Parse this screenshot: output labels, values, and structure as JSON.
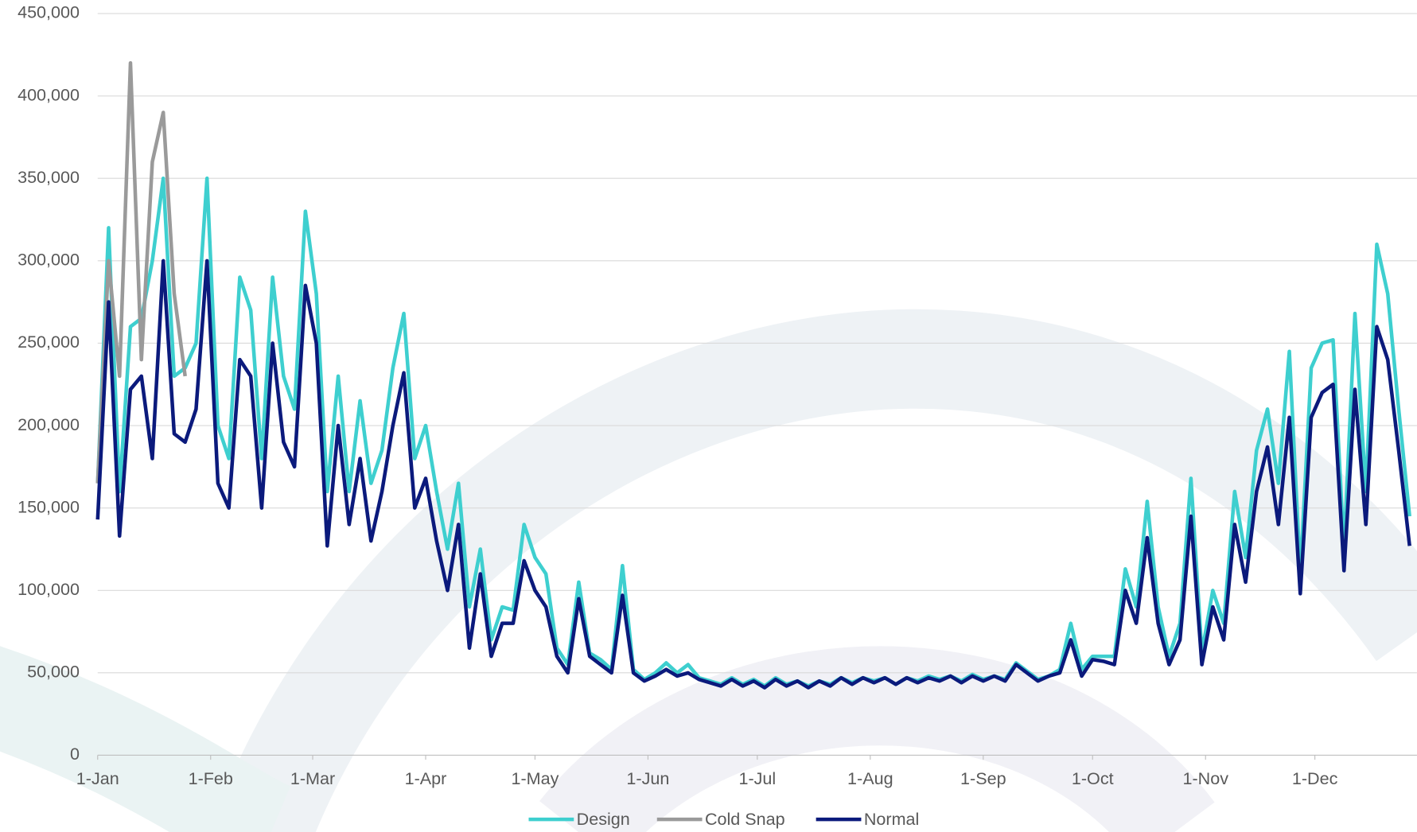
{
  "chart_data": {
    "type": "line",
    "x": [
      0,
      3,
      6,
      9,
      12,
      15,
      18,
      21,
      24,
      27,
      30,
      33,
      36,
      39,
      42,
      45,
      48,
      51,
      54,
      57,
      60,
      63,
      66,
      69,
      72,
      75,
      78,
      81,
      84,
      87,
      90,
      93,
      96,
      99,
      102,
      105,
      108,
      111,
      114,
      117,
      120,
      123,
      126,
      129,
      132,
      135,
      138,
      141,
      144,
      147,
      150,
      153,
      156,
      159,
      162,
      165,
      168,
      171,
      174,
      177,
      180,
      183,
      186,
      189,
      192,
      195,
      198,
      201,
      204,
      207,
      210,
      213,
      216,
      219,
      222,
      225,
      228,
      231,
      234,
      237,
      240,
      243,
      246,
      249,
      252,
      255,
      258,
      261,
      264,
      267,
      270,
      273,
      276,
      279,
      282,
      285,
      288,
      291,
      294,
      297,
      300,
      303,
      306,
      309,
      312,
      315,
      318,
      321,
      324,
      327,
      330,
      333,
      336,
      339,
      342,
      345,
      348,
      351,
      354,
      357,
      360
    ],
    "series": [
      {
        "name": "Design",
        "color": "#3ecfcf",
        "values": [
          165000,
          320000,
          160000,
          260000,
          265000,
          300000,
          350000,
          230000,
          235000,
          250000,
          350000,
          200000,
          180000,
          290000,
          270000,
          180000,
          290000,
          230000,
          210000,
          330000,
          280000,
          160000,
          230000,
          160000,
          215000,
          165000,
          185000,
          235000,
          268000,
          180000,
          200000,
          160000,
          125000,
          165000,
          90000,
          125000,
          70000,
          90000,
          88000,
          140000,
          120000,
          110000,
          65000,
          55000,
          105000,
          62000,
          58000,
          52000,
          115000,
          52000,
          46000,
          50000,
          56000,
          50000,
          55000,
          47000,
          45000,
          43000,
          47000,
          43000,
          46000,
          42000,
          47000,
          43000,
          45000,
          42000,
          45000,
          43000,
          47000,
          44000,
          47000,
          45000,
          47000,
          43000,
          47000,
          45000,
          48000,
          46000,
          48000,
          45000,
          49000,
          46000,
          48000,
          46000,
          56000,
          51000,
          46000,
          48000,
          52000,
          80000,
          52000,
          60000,
          60000,
          60000,
          113000,
          90000,
          154000,
          90000,
          60000,
          80000,
          168000,
          62000,
          100000,
          80000,
          160000,
          120000,
          185000,
          210000,
          165000,
          245000,
          110000,
          235000,
          250000,
          252000,
          125000,
          268000,
          160000,
          310000,
          280000,
          210000,
          145000
        ]
      },
      {
        "name": "Cold Snap",
        "color": "#9a9a9a",
        "values": [
          165000,
          300000,
          230000,
          420000,
          240000,
          360000,
          390000,
          280000,
          230000,
          null,
          null,
          null,
          null,
          null,
          null,
          null,
          null,
          null,
          null,
          null,
          null,
          null,
          null,
          null,
          null,
          null,
          null,
          null,
          null,
          null,
          null,
          null,
          null,
          null,
          null,
          null,
          null,
          null,
          null,
          null,
          null,
          null,
          null,
          null,
          null,
          null,
          null,
          null,
          null,
          null,
          null,
          null,
          null,
          null,
          null,
          null,
          null,
          null,
          null,
          null,
          null,
          null,
          null,
          null,
          null,
          null,
          null,
          null,
          null,
          null,
          null,
          null,
          null,
          null,
          null,
          null,
          null,
          null,
          null,
          null,
          null,
          null,
          null,
          null,
          null,
          null,
          null,
          null,
          null,
          null,
          null,
          null,
          null,
          null,
          null,
          null,
          null,
          null,
          null,
          null,
          null,
          null,
          null,
          null,
          null,
          null,
          null,
          null,
          null,
          null,
          null,
          null,
          null,
          null,
          null,
          null,
          null,
          null,
          null,
          null,
          null
        ]
      },
      {
        "name": "Normal",
        "color": "#0b1a7c",
        "values": [
          143000,
          275000,
          133000,
          222000,
          230000,
          180000,
          300000,
          195000,
          190000,
          210000,
          300000,
          165000,
          150000,
          240000,
          230000,
          150000,
          250000,
          190000,
          175000,
          285000,
          250000,
          127000,
          200000,
          140000,
          180000,
          130000,
          160000,
          200000,
          232000,
          150000,
          168000,
          130000,
          100000,
          140000,
          65000,
          110000,
          60000,
          80000,
          80000,
          118000,
          100000,
          90000,
          60000,
          50000,
          95000,
          60000,
          55000,
          50000,
          97000,
          50000,
          45000,
          48000,
          52000,
          48000,
          50000,
          46000,
          44000,
          42000,
          46000,
          42000,
          45000,
          41000,
          46000,
          42000,
          45000,
          41000,
          45000,
          42000,
          47000,
          43000,
          47000,
          44000,
          47000,
          43000,
          47000,
          44000,
          47000,
          45000,
          48000,
          44000,
          48000,
          45000,
          48000,
          45000,
          55000,
          50000,
          45000,
          48000,
          50000,
          70000,
          48000,
          58000,
          57000,
          55000,
          100000,
          80000,
          132000,
          80000,
          55000,
          70000,
          145000,
          55000,
          90000,
          70000,
          140000,
          105000,
          160000,
          187000,
          140000,
          205000,
          98000,
          205000,
          220000,
          225000,
          112000,
          222000,
          140000,
          260000,
          240000,
          185000,
          127000
        ]
      }
    ],
    "xlim": [
      0,
      362
    ],
    "xticks": [
      {
        "value": 0,
        "label": "1-Jan"
      },
      {
        "value": 31,
        "label": "1-Feb"
      },
      {
        "value": 59,
        "label": "1-Mar"
      },
      {
        "value": 90,
        "label": "1-Apr"
      },
      {
        "value": 120,
        "label": "1-May"
      },
      {
        "value": 151,
        "label": "1-Jun"
      },
      {
        "value": 181,
        "label": "1-Jul"
      },
      {
        "value": 212,
        "label": "1-Aug"
      },
      {
        "value": 243,
        "label": "1-Sep"
      },
      {
        "value": 273,
        "label": "1-Oct"
      },
      {
        "value": 304,
        "label": "1-Nov"
      },
      {
        "value": 334,
        "label": "1-Dec"
      }
    ],
    "ylim": [
      0,
      450000
    ],
    "yticks": [
      0,
      {
        "value": 50000,
        "label": "50,000"
      },
      {
        "value": 100000,
        "label": "100,000"
      },
      {
        "value": 150000,
        "label": "150,000"
      },
      {
        "value": 200000,
        "label": "200,000"
      },
      {
        "value": 250000,
        "label": "250,000"
      },
      {
        "value": 300000,
        "label": "300,000"
      },
      {
        "value": 350000,
        "label": "350,000"
      },
      {
        "value": 400000,
        "label": "400,000"
      },
      {
        "value": 450000,
        "label": "450,000"
      }
    ],
    "grid": true,
    "legend": "bottom"
  }
}
